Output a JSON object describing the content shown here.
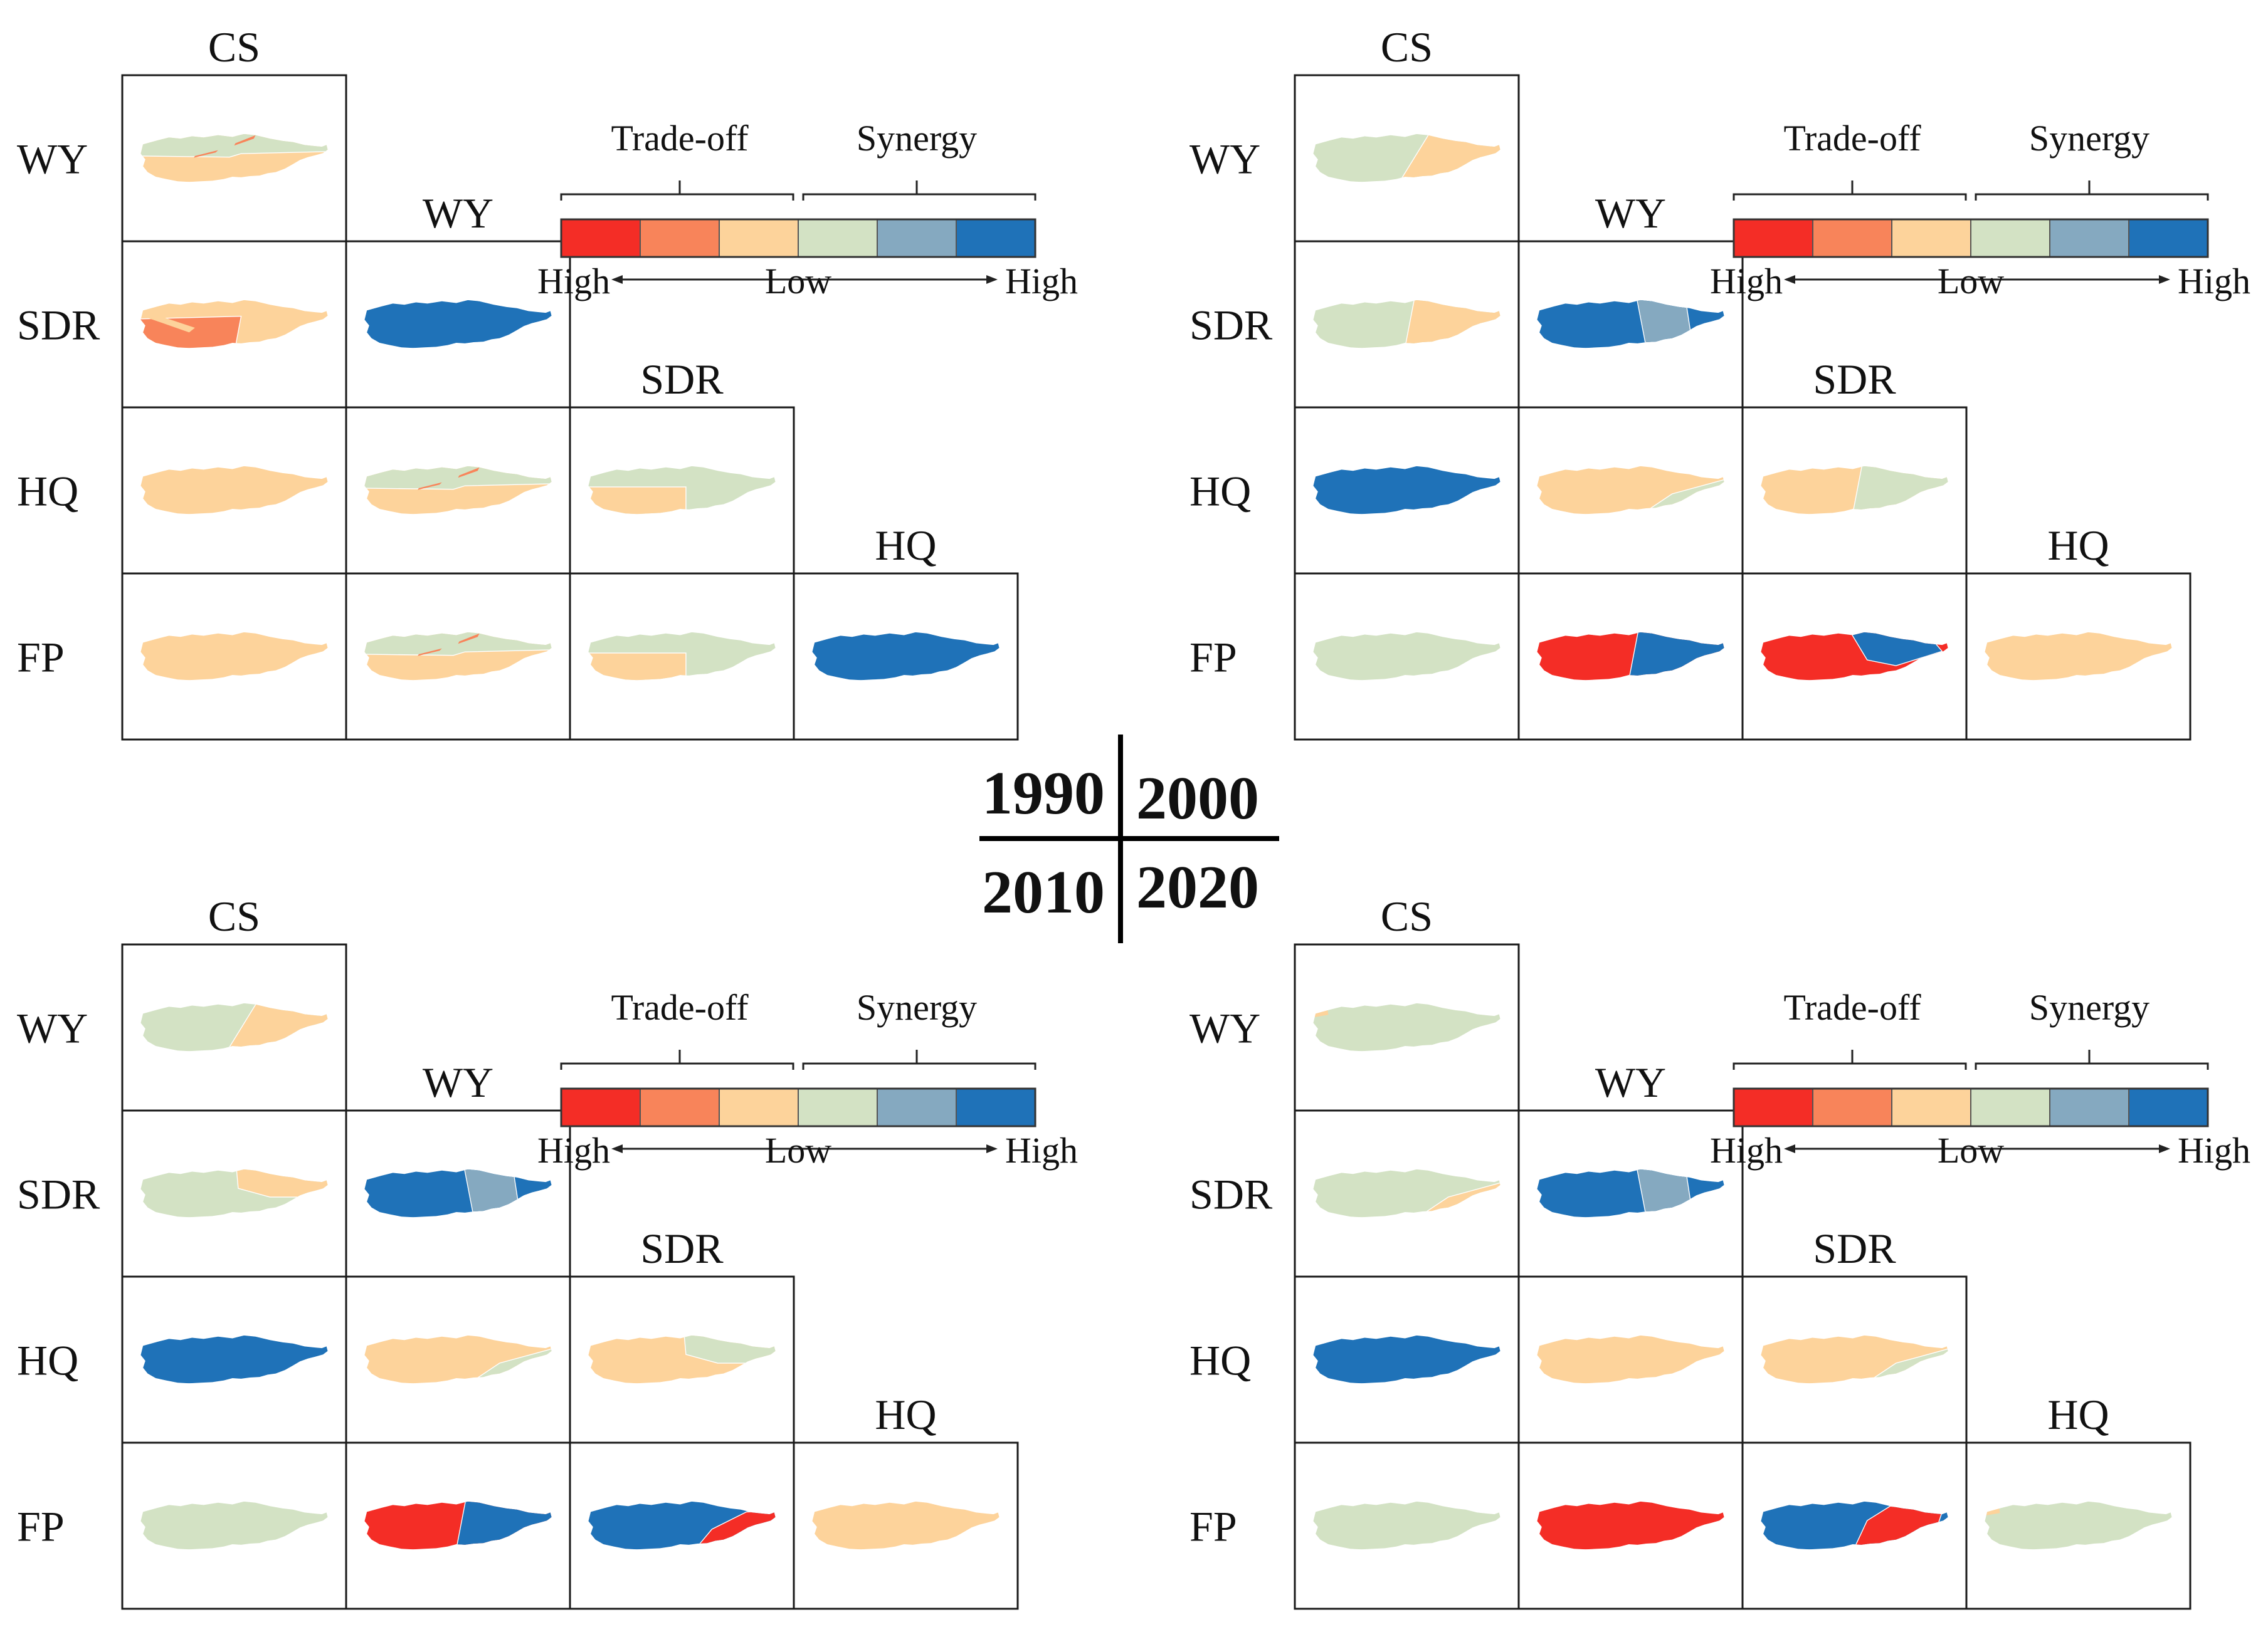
{
  "figure_title": "",
  "services": [
    "CS",
    "WY",
    "SDR",
    "HQ",
    "FP"
  ],
  "legend": {
    "tradeoff_label": "Trade-off",
    "synergy_label": "Synergy",
    "left_label": "High",
    "center_label": "Low",
    "right_label": "High",
    "colors": [
      "#f42d26",
      "#f8845a",
      "#fdd39b",
      "#d3e2c4",
      "#85a9c0",
      "#1f72b8"
    ]
  },
  "years": [
    "1990",
    "2000",
    "2010",
    "2020"
  ],
  "panels": [
    {
      "year": "1990",
      "cells": [
        {
          "row": "WY",
          "col": "CS",
          "pattern": "split-ne-tilt",
          "fill_a": "#fdd39b",
          "fill_b": "#d3e2c4",
          "accent": "#f8845a"
        },
        {
          "row": "SDR",
          "col": "CS",
          "pattern": "split-west",
          "fill_a": "#fdd39b",
          "fill_b": "#f8845a",
          "accent": "#fdd39b"
        },
        {
          "row": "SDR",
          "col": "WY",
          "pattern": "solid",
          "fill_a": "#1f72b8",
          "fill_b": "#1f72b8",
          "accent": ""
        },
        {
          "row": "HQ",
          "col": "CS",
          "pattern": "solid",
          "fill_a": "#fdd39b",
          "fill_b": "#fdd39b",
          "accent": ""
        },
        {
          "row": "HQ",
          "col": "WY",
          "pattern": "split-ne-tilt",
          "fill_a": "#fdd39b",
          "fill_b": "#d3e2c4",
          "accent": "#f8845a"
        },
        {
          "row": "HQ",
          "col": "SDR",
          "pattern": "split-sw",
          "fill_a": "#d3e2c4",
          "fill_b": "#fdd39b",
          "accent": ""
        },
        {
          "row": "FP",
          "col": "CS",
          "pattern": "solid",
          "fill_a": "#fdd39b",
          "fill_b": "#fdd39b",
          "accent": ""
        },
        {
          "row": "FP",
          "col": "WY",
          "pattern": "split-ne-tilt",
          "fill_a": "#fdd39b",
          "fill_b": "#d3e2c4",
          "accent": "#f8845a"
        },
        {
          "row": "FP",
          "col": "SDR",
          "pattern": "split-sw",
          "fill_a": "#d3e2c4",
          "fill_b": "#fdd39b",
          "accent": ""
        },
        {
          "row": "FP",
          "col": "HQ",
          "pattern": "solid",
          "fill_a": "#1f72b8",
          "fill_b": "#1f72b8",
          "accent": ""
        }
      ]
    },
    {
      "year": "2000",
      "cells": [
        {
          "row": "WY",
          "col": "CS",
          "pattern": "split-east-diag",
          "fill_a": "#d3e2c4",
          "fill_b": "#fdd39b",
          "accent": ""
        },
        {
          "row": "SDR",
          "col": "CS",
          "pattern": "split-east",
          "fill_a": "#d3e2c4",
          "fill_b": "#fdd39b",
          "accent": ""
        },
        {
          "row": "SDR",
          "col": "WY",
          "pattern": "band",
          "fill_a": "#1f72b8",
          "fill_b": "#85a9c0",
          "accent": ""
        },
        {
          "row": "HQ",
          "col": "CS",
          "pattern": "solid",
          "fill_a": "#1f72b8",
          "fill_b": "#1f72b8",
          "accent": ""
        },
        {
          "row": "HQ",
          "col": "WY",
          "pattern": "split-se",
          "fill_a": "#fdd39b",
          "fill_b": "#d3e2c4",
          "accent": ""
        },
        {
          "row": "HQ",
          "col": "SDR",
          "pattern": "split-east",
          "fill_a": "#fdd39b",
          "fill_b": "#d3e2c4",
          "accent": ""
        },
        {
          "row": "FP",
          "col": "CS",
          "pattern": "solid",
          "fill_a": "#d3e2c4",
          "fill_b": "#d3e2c4",
          "accent": ""
        },
        {
          "row": "FP",
          "col": "WY",
          "pattern": "split-east",
          "fill_a": "#f42d26",
          "fill_b": "#1f72b8",
          "accent": ""
        },
        {
          "row": "FP",
          "col": "SDR",
          "pattern": "pocket",
          "fill_a": "#f42d26",
          "fill_b": "#1f72b8",
          "accent": ""
        },
        {
          "row": "FP",
          "col": "HQ",
          "pattern": "solid",
          "fill_a": "#fdd39b",
          "fill_b": "#fdd39b",
          "accent": ""
        }
      ]
    },
    {
      "year": "2010",
      "cells": [
        {
          "row": "WY",
          "col": "CS",
          "pattern": "split-east-diag",
          "fill_a": "#d3e2c4",
          "fill_b": "#fdd39b",
          "accent": ""
        },
        {
          "row": "SDR",
          "col": "CS",
          "pattern": "split-ne",
          "fill_a": "#d3e2c4",
          "fill_b": "#fdd39b",
          "accent": ""
        },
        {
          "row": "SDR",
          "col": "WY",
          "pattern": "band",
          "fill_a": "#1f72b8",
          "fill_b": "#85a9c0",
          "accent": ""
        },
        {
          "row": "HQ",
          "col": "CS",
          "pattern": "solid",
          "fill_a": "#1f72b8",
          "fill_b": "#1f72b8",
          "accent": ""
        },
        {
          "row": "HQ",
          "col": "WY",
          "pattern": "split-se",
          "fill_a": "#fdd39b",
          "fill_b": "#d3e2c4",
          "accent": ""
        },
        {
          "row": "HQ",
          "col": "SDR",
          "pattern": "split-ne",
          "fill_a": "#fdd39b",
          "fill_b": "#d3e2c4",
          "accent": ""
        },
        {
          "row": "FP",
          "col": "CS",
          "pattern": "solid",
          "fill_a": "#d3e2c4",
          "fill_b": "#d3e2c4",
          "accent": ""
        },
        {
          "row": "FP",
          "col": "WY",
          "pattern": "split-east",
          "fill_a": "#f42d26",
          "fill_b": "#1f72b8",
          "accent": ""
        },
        {
          "row": "FP",
          "col": "SDR",
          "pattern": "split-diag",
          "fill_a": "#1f72b8",
          "fill_b": "#f42d26",
          "accent": ""
        },
        {
          "row": "FP",
          "col": "HQ",
          "pattern": "solid",
          "fill_a": "#fdd39b",
          "fill_b": "#fdd39b",
          "accent": ""
        }
      ]
    },
    {
      "year": "2020",
      "cells": [
        {
          "row": "WY",
          "col": "CS",
          "pattern": "solid",
          "fill_a": "#d3e2c4",
          "fill_b": "#d3e2c4",
          "accent": "#fdd39b"
        },
        {
          "row": "SDR",
          "col": "CS",
          "pattern": "split-se",
          "fill_a": "#d3e2c4",
          "fill_b": "#fdd39b",
          "accent": ""
        },
        {
          "row": "SDR",
          "col": "WY",
          "pattern": "band",
          "fill_a": "#1f72b8",
          "fill_b": "#85a9c0",
          "accent": ""
        },
        {
          "row": "HQ",
          "col": "CS",
          "pattern": "solid",
          "fill_a": "#1f72b8",
          "fill_b": "#1f72b8",
          "accent": ""
        },
        {
          "row": "HQ",
          "col": "WY",
          "pattern": "solid",
          "fill_a": "#fdd39b",
          "fill_b": "#fdd39b",
          "accent": ""
        },
        {
          "row": "HQ",
          "col": "SDR",
          "pattern": "split-se",
          "fill_a": "#fdd39b",
          "fill_b": "#d3e2c4",
          "accent": ""
        },
        {
          "row": "FP",
          "col": "CS",
          "pattern": "solid",
          "fill_a": "#d3e2c4",
          "fill_b": "#d3e2c4",
          "accent": ""
        },
        {
          "row": "FP",
          "col": "WY",
          "pattern": "solid",
          "fill_a": "#f42d26",
          "fill_b": "#f42d26",
          "accent": ""
        },
        {
          "row": "FP",
          "col": "SDR",
          "pattern": "center-band",
          "fill_a": "#1f72b8",
          "fill_b": "#f42d26",
          "accent": ""
        },
        {
          "row": "FP",
          "col": "HQ",
          "pattern": "solid",
          "fill_a": "#d3e2c4",
          "fill_b": "#d3e2c4",
          "accent": "#fdd39b"
        }
      ]
    }
  ]
}
